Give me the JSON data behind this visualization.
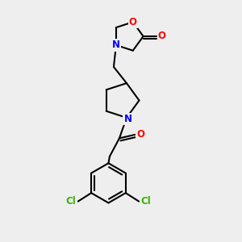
{
  "bg_color": "#eeeeee",
  "atom_colors": {
    "O": "#ff0000",
    "N": "#0000ff",
    "Cl": "#3cb300",
    "C": "#000000"
  },
  "bond_color": "#000000",
  "bond_width": 1.5,
  "font_size": 8.5
}
